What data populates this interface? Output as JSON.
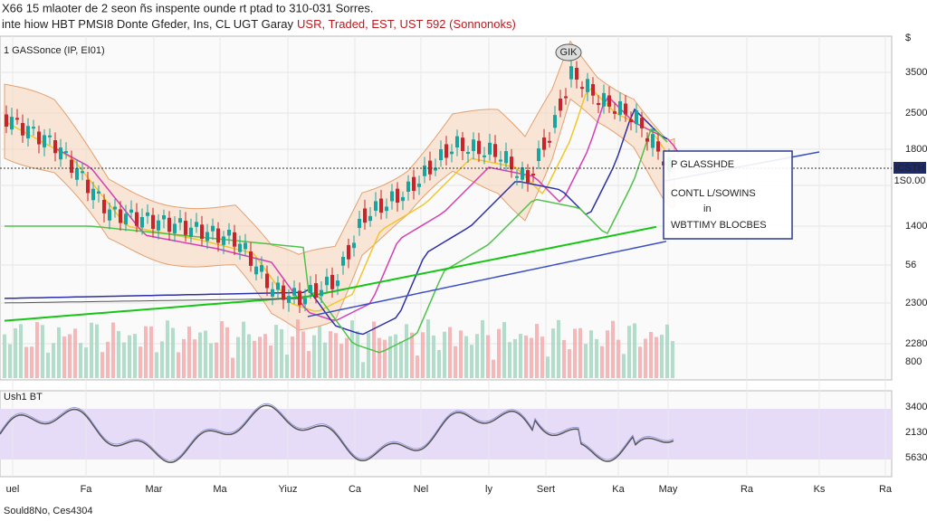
{
  "header": {
    "line1": "X66 15 mlaoter de 2 seon ñs inspente ounde rt ptad to 310-031 Sorres.",
    "line2": "inte hiow HBT PMSI8 Donte Gfeder, Ins, CL UGT Garay",
    "line2_red": "USR, Traded, EST, UST 592 (Sonnonoks)"
  },
  "main_panel": {
    "label": "1 GASSonce (IP, EI01)",
    "peak_marker": "GIK",
    "price_labels": [
      "3500",
      "2500",
      "1800",
      "1400",
      "56",
      "2300",
      "2280",
      "800"
    ],
    "highlight_labels": [
      "ICSTH",
      "1S0.00"
    ],
    "corner": "$"
  },
  "annotation": {
    "lines": [
      "P GLASSHDE",
      "CONTL L/SOWINS",
      "in",
      "WBTTIMY BLOCBES"
    ]
  },
  "lower_panel": {
    "label": "Ush1 BT",
    "labels": [
      "3400",
      "2130",
      "5630"
    ]
  },
  "x_labels": [
    "uel",
    "Fa",
    "Mar",
    "Ma",
    "Yiuz",
    "Ca",
    "Nel",
    "ly",
    "Sert",
    "Ka",
    "May",
    "Ra",
    "Ks",
    "Ra"
  ],
  "footer": "Sould8No, Ces4304"
}
